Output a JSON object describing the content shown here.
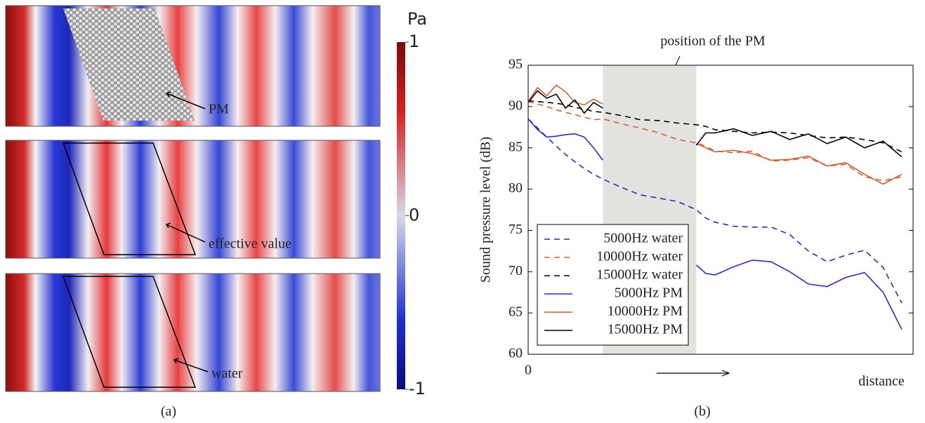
{
  "panel_a": {
    "labels": [
      "PM",
      "effective value",
      "water"
    ],
    "colorbar": {
      "label": "Pa",
      "lim": [
        -1,
        1
      ],
      "ticks": [
        1,
        0,
        -1
      ]
    },
    "caption": "(a)"
  },
  "chart_data": {
    "type": "line",
    "caption": "(b)",
    "annotation": "position of the PM",
    "xlabel": "distance",
    "ylabel": "Sound pressure level (dB)",
    "xlim": [
      0,
      103
    ],
    "xticks": [
      0
    ],
    "ylim": [
      60,
      95
    ],
    "yticks": [
      60,
      65,
      70,
      75,
      80,
      85,
      90,
      95
    ],
    "shade": [
      20,
      45
    ],
    "grid": false,
    "legend": "lower left",
    "x": [
      0,
      2.5,
      5,
      7.5,
      10,
      12.5,
      15,
      17.5,
      20,
      25,
      30,
      35,
      40,
      45,
      47.5,
      50,
      55,
      60,
      65,
      70,
      75,
      80,
      85,
      90,
      95,
      100
    ],
    "series": [
      {
        "name": "5000Hz water",
        "color": "#2b2bbf",
        "dash": true,
        "values": [
          88.5,
          87.4,
          86.3,
          85.2,
          84.2,
          83.3,
          82.5,
          81.8,
          81.2,
          80.2,
          79.3,
          78.9,
          78.5,
          77.5,
          76.5,
          76,
          75.5,
          75.4,
          75.4,
          74.5,
          72.5,
          71.2,
          72,
          72.6,
          70.5,
          66.2
        ]
      },
      {
        "name": "10000Hz water",
        "color": "#c8643a",
        "dash": true,
        "values": [
          90.6,
          90.3,
          90,
          89.6,
          89.3,
          89,
          88.7,
          88.4,
          88.5,
          87.9,
          87.4,
          86.8,
          86,
          85.6,
          85.2,
          84.6,
          84.4,
          84.6,
          83.4,
          83.5,
          83.8,
          82.8,
          83,
          81.5,
          81,
          81.5
        ]
      },
      {
        "name": "15000Hz water",
        "color": "#000000",
        "dash": true,
        "values": [
          90.7,
          90.6,
          90.5,
          90.4,
          90.2,
          89.9,
          89.7,
          89.4,
          89.3,
          88.9,
          88.4,
          88.3,
          88,
          87.8,
          87.6,
          87.2,
          87,
          86.8,
          86.9,
          86.8,
          86.5,
          86.2,
          86.3,
          86,
          85.6,
          84.5
        ]
      },
      {
        "name": "5000Hz PM",
        "color": "#2b2bbf",
        "dash": false,
        "values": [
          88.5,
          87.2,
          86.3,
          86.4,
          86.6,
          86.7,
          86.3,
          85,
          83.5,
          null,
          null,
          null,
          null,
          70.8,
          69.8,
          69.6,
          70.6,
          71.4,
          71.2,
          70,
          68.5,
          68.2,
          69.3,
          69.9,
          67.5,
          63
        ]
      },
      {
        "name": "10000Hz PM",
        "color": "#c8643a",
        "dash": false,
        "values": [
          90.6,
          92.3,
          91.3,
          92.6,
          91.8,
          90.5,
          90.2,
          90.9,
          90.3,
          null,
          null,
          null,
          null,
          85.5,
          85,
          84.5,
          84.7,
          84.3,
          83.5,
          83.6,
          84,
          82.8,
          83.2,
          81.8,
          80.6,
          81.8
        ]
      },
      {
        "name": "15000Hz PM",
        "color": "#000000",
        "dash": false,
        "values": [
          90.5,
          91.9,
          91,
          91.5,
          89.8,
          90.8,
          89.2,
          90.5,
          89.8,
          null,
          null,
          null,
          null,
          85.3,
          86.8,
          86.8,
          87.3,
          86.5,
          87,
          86,
          86.7,
          85.5,
          86.3,
          85,
          85.8,
          83.9
        ]
      }
    ]
  }
}
